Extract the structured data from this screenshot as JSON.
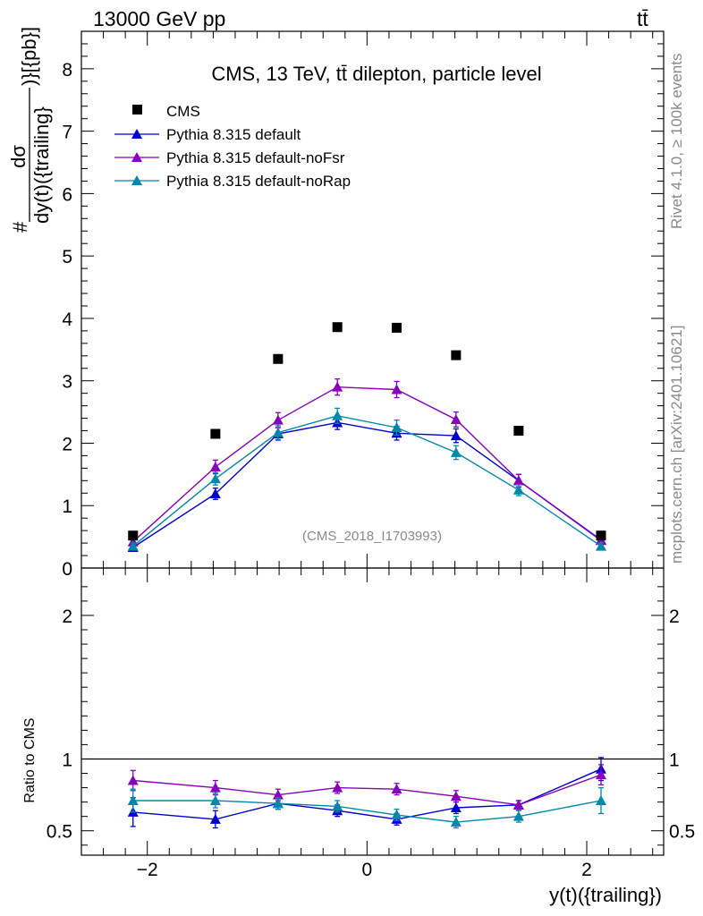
{
  "header": {
    "left": "13000 GeV pp",
    "right": "tt̄"
  },
  "side_labels": {
    "rivet": "Rivet 4.1.0, ≥ 100k events",
    "mcplots": "mcplots.cern.ch [arXiv:2401.10621]"
  },
  "chart_data": [
    {
      "type": "scatter",
      "panel": "main",
      "title": "CMS, 13 TeV, tt̄ dilepton, particle level",
      "watermark": "(CMS_2018_I1703993)",
      "ylabel_numerator": "dσ",
      "ylabel_denominator": "dy(t)({trailing}",
      "ylabel_prefix": "#",
      "ylabel_suffix": ")}[{pb}]",
      "xlim": [
        -2.6,
        2.7
      ],
      "ylim": [
        0,
        8.6
      ],
      "x_ticks": [
        -2,
        0,
        2
      ],
      "y_ticks": [
        0,
        1,
        2,
        3,
        4,
        5,
        6,
        7,
        8
      ],
      "y_tick_labels": [
        "0",
        "1",
        "2",
        "3",
        "4",
        "5",
        "6",
        "7",
        "8"
      ],
      "data": {
        "name": "CMS",
        "color": "#000000",
        "x": [
          -2.13,
          -1.38,
          -0.81,
          -0.27,
          0.27,
          0.81,
          1.38,
          2.13
        ],
        "y": [
          0.52,
          2.15,
          3.35,
          3.86,
          3.85,
          3.41,
          2.2,
          0.52
        ]
      },
      "series": [
        {
          "name": "Pythia 8.315 default",
          "color": "#0000cc",
          "x": [
            -2.13,
            -1.38,
            -0.81,
            -0.27,
            0.27,
            0.81,
            1.38,
            2.13
          ],
          "y": [
            0.33,
            1.19,
            2.15,
            2.33,
            2.16,
            2.12,
            1.4,
            0.45
          ],
          "err": [
            0.05,
            0.09,
            0.1,
            0.11,
            0.11,
            0.11,
            0.1,
            0.05
          ]
        },
        {
          "name": "Pythia 8.315 default-noFsr",
          "color": "#8800bb",
          "x": [
            -2.13,
            -1.38,
            -0.81,
            -0.27,
            0.27,
            0.81,
            1.38,
            2.13
          ],
          "y": [
            0.42,
            1.62,
            2.37,
            2.9,
            2.86,
            2.38,
            1.4,
            0.44
          ],
          "err": [
            0.05,
            0.11,
            0.12,
            0.13,
            0.13,
            0.12,
            0.1,
            0.05
          ]
        },
        {
          "name": "Pythia 8.315 default-noRap",
          "color": "#0088aa",
          "x": [
            -2.13,
            -1.38,
            -0.81,
            -0.27,
            0.27,
            0.81,
            1.38,
            2.13
          ],
          "y": [
            0.35,
            1.43,
            2.17,
            2.44,
            2.25,
            1.85,
            1.25,
            0.35
          ],
          "err": [
            0.05,
            0.1,
            0.11,
            0.12,
            0.12,
            0.11,
            0.09,
            0.05
          ]
        }
      ]
    },
    {
      "type": "scatter",
      "panel": "ratio",
      "ylabel": "Ratio to CMS",
      "xlabel": "y(t)({trailing})",
      "xlim": [
        -2.6,
        2.7
      ],
      "ylim": [
        0.33,
        2.33
      ],
      "x_ticks": [
        -2,
        0,
        2
      ],
      "x_tick_labels": [
        "−2",
        "0",
        "2"
      ],
      "y_ticks": [
        0.5,
        1,
        2
      ],
      "y_tick_labels": [
        "0.5",
        "1",
        "2"
      ],
      "reference": 1,
      "series": [
        {
          "name": "Pythia 8.315 default",
          "color": "#0000cc",
          "x": [
            -2.13,
            -1.38,
            -0.81,
            -0.27,
            0.27,
            0.81,
            1.38,
            2.13
          ],
          "y": [
            0.63,
            0.58,
            0.69,
            0.64,
            0.58,
            0.66,
            0.68,
            0.93
          ],
          "err": [
            0.1,
            0.06,
            0.04,
            0.04,
            0.04,
            0.04,
            0.03,
            0.08
          ]
        },
        {
          "name": "Pythia 8.315 default-noFsr",
          "color": "#8800bb",
          "x": [
            -2.13,
            -1.38,
            -0.81,
            -0.27,
            0.27,
            0.81,
            1.38,
            2.13
          ],
          "y": [
            0.85,
            0.8,
            0.75,
            0.8,
            0.79,
            0.74,
            0.68,
            0.89
          ],
          "err": [
            0.07,
            0.05,
            0.04,
            0.04,
            0.04,
            0.04,
            0.03,
            0.07
          ]
        },
        {
          "name": "Pythia 8.315 default-noRap",
          "color": "#0088aa",
          "x": [
            -2.13,
            -1.38,
            -0.81,
            -0.27,
            0.27,
            0.81,
            1.38,
            2.13
          ],
          "y": [
            0.71,
            0.71,
            0.69,
            0.67,
            0.61,
            0.56,
            0.6,
            0.71
          ],
          "err": [
            0.08,
            0.05,
            0.04,
            0.04,
            0.04,
            0.04,
            0.04,
            0.09
          ]
        }
      ]
    }
  ]
}
